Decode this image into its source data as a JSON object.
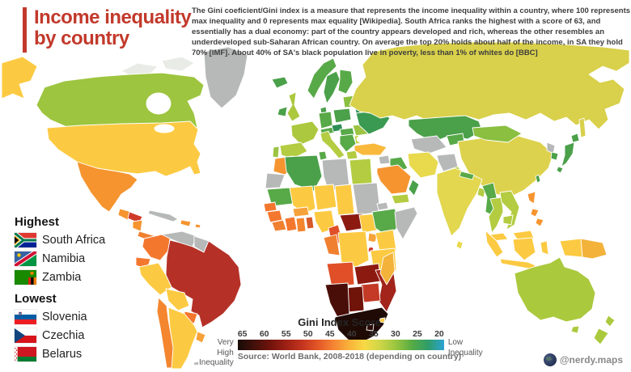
{
  "title": {
    "line1": "Income inequality",
    "line2": "by country",
    "accent_color": "#c2392b"
  },
  "description": {
    "text": "The Gini coeficient/Gini index is a measure that represents the income inequality within a country, where 100 represents max inequality and 0 represents max equality [Wikipedia]. South Africa ranks the highest with a score of 63, and essentially has a dual economy: part of the country appears developed and rich, whereas the other resembles an underdeveloped sub-Saharan African country. On average the top 20% holds about half of the income, in SA they hold 70% [IMF]. About 40% of SA's black population live in poverty, less than 1% of whites do [BBC]"
  },
  "panels": {
    "highest": {
      "heading": "Highest",
      "items": [
        {
          "label": "South Africa",
          "icon": "south-africa-flag"
        },
        {
          "label": "Namibia",
          "icon": "namibia-flag"
        },
        {
          "label": "Zambia",
          "icon": "zambia-flag"
        }
      ]
    },
    "lowest": {
      "heading": "Lowest",
      "items": [
        {
          "label": "Slovenia",
          "icon": "slovenia-flag"
        },
        {
          "label": "Czechia",
          "icon": "czechia-flag"
        },
        {
          "label": "Belarus",
          "icon": "belarus-flag"
        }
      ]
    }
  },
  "legend": {
    "title": "Gini Index Score",
    "ticks": [
      65,
      60,
      55,
      50,
      45,
      40,
      35,
      30,
      25,
      20
    ],
    "left_label": {
      "line1": "Very High",
      "line2": "Inequality"
    },
    "right_label": {
      "line1": "Low",
      "line2": "Inequality"
    },
    "source": "Source: World Bank, 2008-2018 (depending on country)",
    "gradient": [
      "#170b05",
      "#42100b",
      "#6f130c",
      "#9c1f14",
      "#c2331f",
      "#e25526",
      "#f58233",
      "#f9b23a",
      "#f7da45",
      "#ccd647",
      "#97c43f",
      "#54ab45",
      "#2f9d6a",
      "#2ba3d4"
    ]
  },
  "watermark": {
    "handle": "@nerdy.maps",
    "icon": "globe-icon"
  },
  "chart_data": {
    "type": "choropleth-map",
    "title": "Income inequality by country",
    "metric": "Gini Index Score",
    "scale_range": [
      65,
      20
    ],
    "scale_direction": "65 = very high inequality (dark red/black), 20 = low inequality (teal)",
    "highest_countries": [
      "South Africa",
      "Namibia",
      "Zambia"
    ],
    "lowest_countries": [
      "Slovenia",
      "Czechia",
      "Belarus"
    ],
    "notable_values": {
      "South Africa": 63
    },
    "source": "World Bank, 2008-2018 (depending on country)",
    "no_data_color": "#b7b9b8"
  },
  "map_regions": {
    "ocean": "#ffffff",
    "arctic": "#e9ece6",
    "canada": "#9dc53f",
    "alaska": "#fcca42",
    "greenland": "#b7b9b8",
    "usa": "#fcca42",
    "mexico": "#f6942f",
    "guatemala": "#f6942f",
    "honduras": "#d03a28",
    "nicaragua": "#f6942f",
    "costa-rica-panama": "#f08030",
    "cuba": "#b7b9b8",
    "hispaniola": "#f6942f",
    "puerto-rico": "#f6942f",
    "colombia": "#f4772e",
    "venezuela": "#b7b9b8",
    "guyanas": "#b7b9b8",
    "ecuador": "#f4772e",
    "peru": "#fcca42",
    "brazil": "#b53128",
    "bolivia": "#fcca42",
    "paraguay": "#f4772e",
    "chile": "#f4862f",
    "argentina": "#fcca42",
    "uruguay": "#f6a23a",
    "falklands": "#b7b9b8",
    "iceland": "#4ba04a",
    "ireland": "#4ba04a",
    "uk": "#acc83e",
    "norway": "#58a948",
    "sweden": "#4ba04a",
    "finland": "#58a948",
    "denmark": "#4ba04a",
    "baltics": "#8abf40",
    "belarus": "#2d8f56",
    "poland": "#4ba04a",
    "germany": "#58a948",
    "france": "#acc83e",
    "portugal": "#9cc342",
    "spain": "#b3cc41",
    "italy": "#b3cc41",
    "alpine": "#58a948",
    "czechia": "#2d8f56",
    "hungary-slovakia": "#58a948",
    "balkans": "#58a948",
    "greece": "#b3cc41",
    "romania": "#9cc342",
    "bulgaria": "#c6d245",
    "ukraine": "#3a9a51",
    "russia": "#d9d04b",
    "sakhalin": "#d9d04b",
    "kazakhstan": "#4ba04a",
    "uzbek-turkmen": "#b7b9b8",
    "kyrgyz-tajik": "#58a948",
    "turkey": "#f8b93c",
    "syria": "#b7b9b8",
    "iraq": "#58a948",
    "saudi-arabia": "#f6942f",
    "yemen": "#b3cc41",
    "oman": "#4ba04a",
    "iran": "#e8d94d",
    "afghanistan": "#b7b9b8",
    "pakistan": "#b3cc41",
    "china": "#ddd24d",
    "mongolia": "#8abf40",
    "india": "#e2d74e",
    "nepal": "#58a948",
    "bangladesh": "#b3cc41",
    "sri-lanka": "#e8d94d",
    "myanmar": "#58a948",
    "thailand": "#b3cc41",
    "vietnam-laos": "#b3cc41",
    "cambodia": "#b3cc41",
    "malaysia": "#fcca42",
    "borneo-malaysia": "#fcca42",
    "sumatra": "#fcca42",
    "java": "#fcca42",
    "borneo-indonesia": "#fcca42",
    "sulawesi": "#fcca42",
    "west-papua": "#fcca42",
    "papua-new-guinea": "#f3b23a",
    "philippines-luzon": "#f6942f",
    "philippines-visayas": "#f6942f",
    "philippines-mindanao": "#f6942f",
    "japan-hokkaido": "#4ba04a",
    "japan-honshu": "#4ba04a",
    "japan-kyushu": "#4ba04a",
    "south-korea": "#4ba04a",
    "north-korea": "#b7b9b8",
    "taiwan": "#4ba04a",
    "australia": "#abc93d",
    "tasmania": "#abc93d",
    "new-zealand-north": "#abc93d",
    "new-zealand-south": "#abc93d",
    "madagascar": "#f3b23a",
    "morocco": "#f6942f",
    "western-sahara": "#b7b9b8",
    "algeria": "#4ba04a",
    "tunisia": "#58a948",
    "libya": "#b7b9b8",
    "egypt": "#b3cc41",
    "mauritania": "#58a948",
    "mali": "#fcca42",
    "niger": "#fcca42",
    "chad": "#fcca42",
    "sudan": "#b7b9b8",
    "eritrea": "#b7b9b8",
    "senegal": "#f4772e",
    "guinea": "#f4772e",
    "sierra-leone-liberia": "#f08030",
    "ivory-coast": "#f4772e",
    "ghana": "#f4862f",
    "togo-benin": "#d65b2b",
    "burkina-faso": "#f6a23a",
    "nigeria": "#fcca42",
    "cameroon": "#e04f28",
    "central-african-republic": "#8c1a11",
    "south-sudan": "#fcca42",
    "ethiopia": "#58a948",
    "somalia": "#b7b9b8",
    "kenya": "#fcca42",
    "uganda": "#f6a23a",
    "gabon-congo": "#f08030",
    "dr-congo": "#fcca42",
    "rwanda-burundi": "#d03a28",
    "tanzania": "#fcca42",
    "malawi": "#f6a23a",
    "angola": "#e04f28",
    "zambia": "#8c1a11",
    "mozambique": "#a2241a",
    "zimbabwe": "#c43a27",
    "botswana": "#701309",
    "namibia": "#4a0e09",
    "south-africa": "#1f0a05",
    "lesotho": "#2a0c06",
    "eswatini": "#fcca42"
  }
}
